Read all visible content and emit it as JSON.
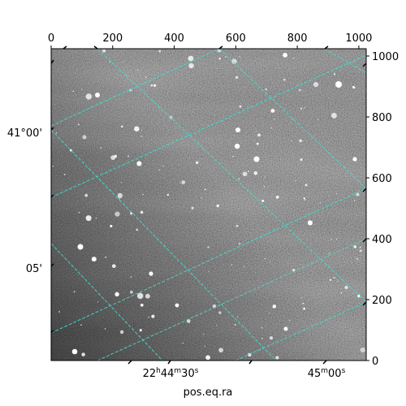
{
  "chart_data": {
    "type": "image",
    "colormap": "gray",
    "grid": true,
    "grid_color": "#40e0d0",
    "pixel_axes": {
      "x_ticks": [
        "0",
        "200",
        "400",
        "600",
        "800",
        "1000"
      ],
      "x_tick_values": [
        0,
        200,
        400,
        600,
        800,
        1000
      ],
      "y_ticks": [
        "0",
        "200",
        "400",
        "600",
        "800",
        "1000"
      ],
      "y_tick_values": [
        0,
        200,
        400,
        600,
        800,
        1000
      ],
      "xlim": [
        0,
        1024
      ],
      "ylim": [
        0,
        1024
      ]
    },
    "world_axes": {
      "xlabel": "pos.eq.ra",
      "ra_tick_labels": [
        {
          "main": "22",
          "unit1": "h",
          "mid": "44",
          "unit2": "m",
          "end": "30",
          "unit3": "s"
        },
        {
          "main": "45",
          "unit1": "m",
          "mid": "00",
          "unit2": "s",
          "end": "",
          "unit3": ""
        }
      ],
      "dec_tick_labels": [
        "41°00'",
        "05'"
      ]
    }
  }
}
